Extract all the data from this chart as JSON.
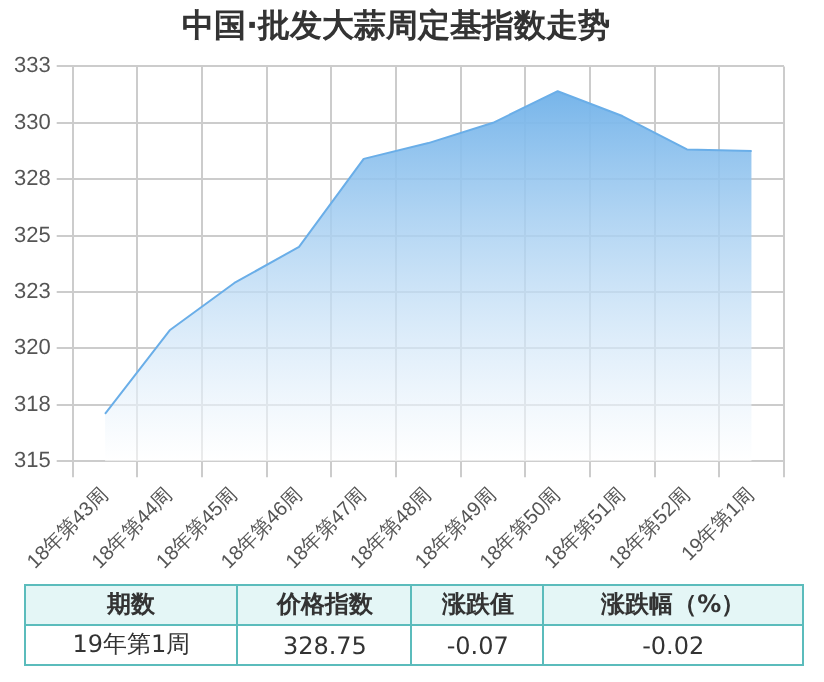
{
  "chart_data": {
    "type": "area",
    "title": "中国·批发大蒜周定基指数走势",
    "categories": [
      "18年第43周",
      "18年第44周",
      "18年第45周",
      "18年第46周",
      "18年第47周",
      "18年第48周",
      "18年第49周",
      "18年第50周",
      "18年第51周",
      "18年第52周",
      "19年第1周"
    ],
    "series": [
      {
        "color": "#6aaee8",
        "values": [
          317.1,
          320.8,
          322.9,
          324.5,
          328.4,
          329.1,
          330.0,
          331.4,
          330.3,
          328.82,
          328.75
        ]
      }
    ],
    "ylim": [
      315,
      332.5
    ],
    "yticks": [
      315,
      {
        "value": 317.5,
        "label": "318"
      },
      320,
      {
        "value": 322.5,
        "label": "323"
      },
      325,
      {
        "value": 327.5,
        "label": "328"
      },
      330,
      {
        "value": 332.5,
        "label": "333"
      }
    ],
    "grid": true,
    "legend": false,
    "annotations": [
      "期数",
      "价格指数",
      "涨跌值",
      "涨跌幅（%）",
      "19年第1周",
      "328.75",
      "-0.07",
      "-0.02"
    ]
  }
}
